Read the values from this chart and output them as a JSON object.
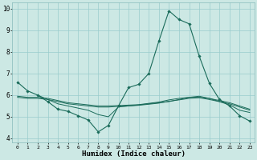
{
  "title": "",
  "xlabel": "Humidex (Indice chaleur)",
  "ylabel": "",
  "xlim": [
    -0.5,
    23.5
  ],
  "ylim": [
    3.8,
    10.3
  ],
  "bg_color": "#cce8e4",
  "grid_color": "#99cccc",
  "line_color": "#1a6b5a",
  "x_ticks": [
    0,
    1,
    2,
    3,
    4,
    5,
    6,
    7,
    8,
    9,
    10,
    11,
    12,
    13,
    14,
    15,
    16,
    17,
    18,
    19,
    20,
    21,
    22,
    23
  ],
  "y_ticks": [
    4,
    5,
    6,
    7,
    8,
    9,
    10
  ],
  "line1_x": [
    0,
    1,
    2,
    3,
    4,
    5,
    6,
    7,
    8,
    9,
    10,
    11,
    12,
    13,
    14,
    15,
    16,
    17,
    18,
    19,
    20,
    21,
    22,
    23
  ],
  "line1_y": [
    6.6,
    6.2,
    6.0,
    5.7,
    5.35,
    5.25,
    5.05,
    4.85,
    4.3,
    4.6,
    5.5,
    6.35,
    6.5,
    7.0,
    8.5,
    9.9,
    9.5,
    9.3,
    7.8,
    6.55,
    5.8,
    5.5,
    5.05,
    4.8
  ],
  "line2_x": [
    2,
    3,
    4,
    5,
    6,
    7,
    8,
    9,
    10,
    11,
    12,
    13,
    14,
    15,
    16,
    17,
    18,
    19,
    20,
    21,
    22,
    23
  ],
  "line2_y": [
    6.0,
    5.8,
    5.6,
    5.5,
    5.4,
    5.3,
    5.1,
    5.0,
    5.45,
    5.5,
    5.55,
    5.6,
    5.65,
    5.7,
    5.8,
    5.9,
    5.9,
    5.85,
    5.7,
    5.55,
    5.3,
    5.2
  ],
  "line3_x": [
    0,
    1,
    2,
    3,
    4,
    5,
    6,
    7,
    8,
    9,
    10,
    11,
    12,
    13,
    14,
    15,
    16,
    17,
    18,
    19,
    20,
    21,
    22,
    23
  ],
  "line3_y": [
    5.95,
    5.9,
    5.9,
    5.85,
    5.75,
    5.65,
    5.6,
    5.55,
    5.5,
    5.5,
    5.52,
    5.54,
    5.56,
    5.62,
    5.68,
    5.78,
    5.85,
    5.9,
    5.95,
    5.85,
    5.75,
    5.65,
    5.5,
    5.35
  ],
  "line4_x": [
    0,
    1,
    2,
    3,
    4,
    5,
    6,
    7,
    8,
    9,
    10,
    11,
    12,
    13,
    14,
    15,
    16,
    17,
    18,
    19,
    20,
    21,
    22,
    23
  ],
  "line4_y": [
    5.9,
    5.85,
    5.85,
    5.8,
    5.7,
    5.6,
    5.55,
    5.5,
    5.45,
    5.45,
    5.48,
    5.5,
    5.53,
    5.58,
    5.63,
    5.72,
    5.78,
    5.85,
    5.88,
    5.8,
    5.7,
    5.6,
    5.45,
    5.3
  ]
}
